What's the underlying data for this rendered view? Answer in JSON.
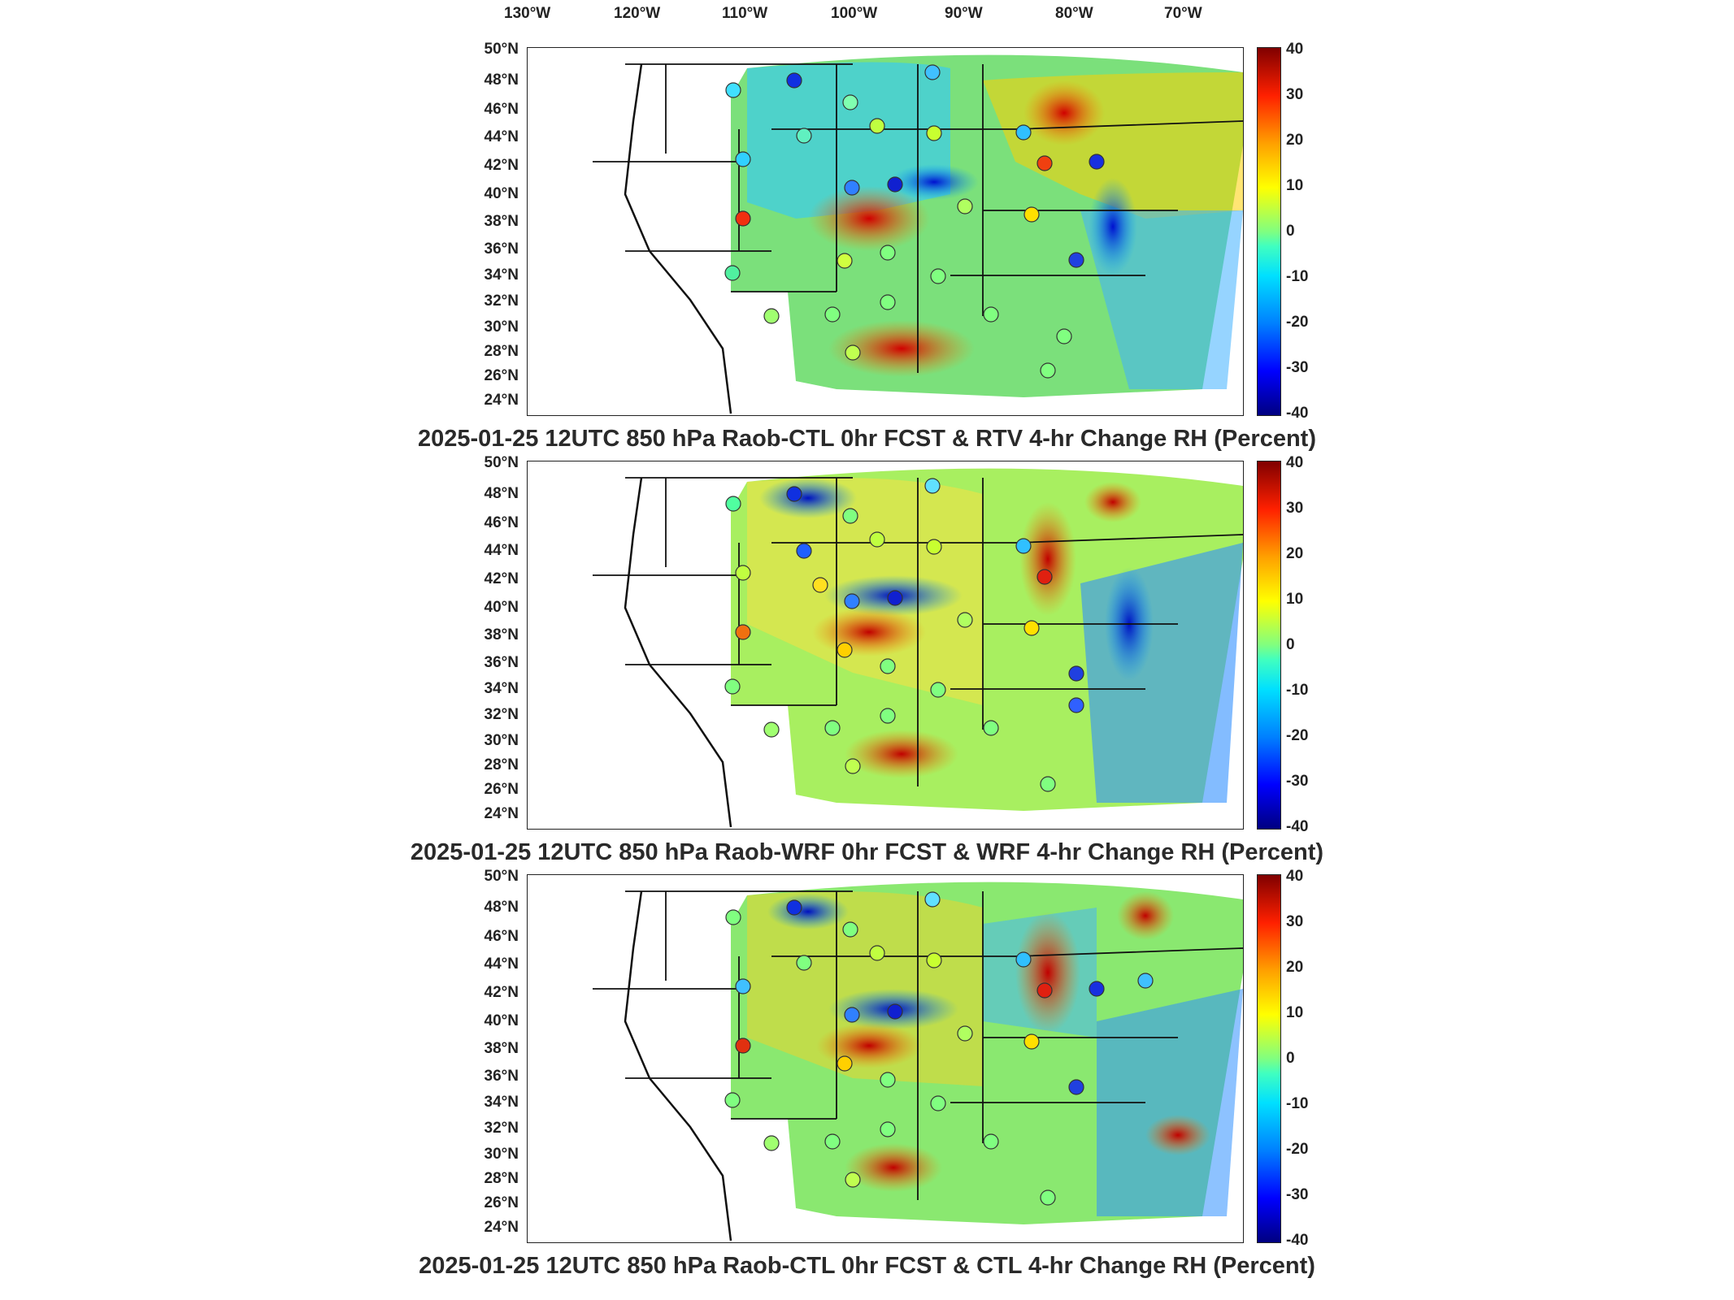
{
  "lon_labels": [
    "130°W",
    "120°W",
    "110°W",
    "100°W",
    "90°W",
    "80°W",
    "70°W"
  ],
  "lat_labels": [
    "50°N",
    "48°N",
    "46°N",
    "44°N",
    "42°N",
    "40°N",
    "38°N",
    "36°N",
    "34°N",
    "32°N",
    "30°N",
    "28°N",
    "26°N",
    "24°N"
  ],
  "colorbar_ticks": [
    "40",
    "30",
    "20",
    "10",
    "0",
    "-10",
    "-20",
    "-30",
    "-40"
  ],
  "colorbar_colors": {
    "min": "#000080",
    "mid": "#80ff80",
    "max": "#800000"
  },
  "panels": [
    {
      "title": "2025-01-25 12UTC 850 hPa Raob-CTL 0hr FCST & RTV 4-hr Change RH (Percent)"
    },
    {
      "title": "2025-01-25 12UTC 850 hPa Raob-WRF 0hr FCST & WRF 4-hr Change RH (Percent)"
    },
    {
      "title": "2025-01-25 12UTC 850 hPa Raob-CTL 0hr FCST & CTL 4-hr Change RH (Percent)"
    }
  ]
}
